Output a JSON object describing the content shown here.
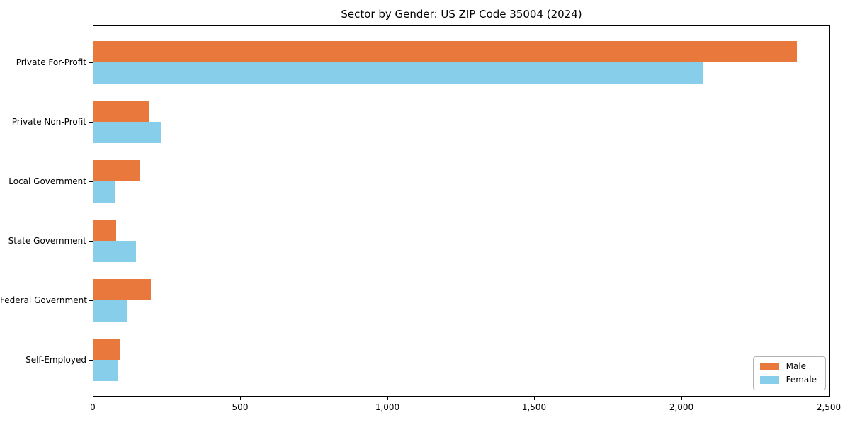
{
  "title": "Sector by Gender: US ZIP Code 35004 (2024)",
  "colors": {
    "male": "#e8783b",
    "female": "#87ceeb",
    "axis": "#000000",
    "background": "#ffffff",
    "legend_border": "#b3b3b3"
  },
  "chart_data": {
    "type": "bar",
    "orientation": "horizontal",
    "title": "Sector by Gender: US ZIP Code 35004 (2024)",
    "xlabel": "",
    "ylabel": "",
    "categories": [
      "Private For-Profit",
      "Private Non-Profit",
      "Local Government",
      "State Government",
      "Federal Government",
      "Self-Employed"
    ],
    "series": [
      {
        "name": "Male",
        "color": "#e8783b",
        "values": [
          2390,
          187,
          156,
          76,
          195,
          91
        ]
      },
      {
        "name": "Female",
        "color": "#87ceeb",
        "values": [
          2070,
          230,
          71,
          144,
          112,
          82
        ]
      }
    ],
    "xlim": [
      0,
      2500
    ],
    "xticks": [
      0,
      500,
      1000,
      1500,
      2000,
      2500
    ],
    "xtick_labels": [
      "0",
      "500",
      "1,000",
      "1,500",
      "2,000",
      "2,500"
    ],
    "grid": false,
    "legend_position": "lower right"
  },
  "legend": {
    "male_label": "Male",
    "female_label": "Female"
  }
}
